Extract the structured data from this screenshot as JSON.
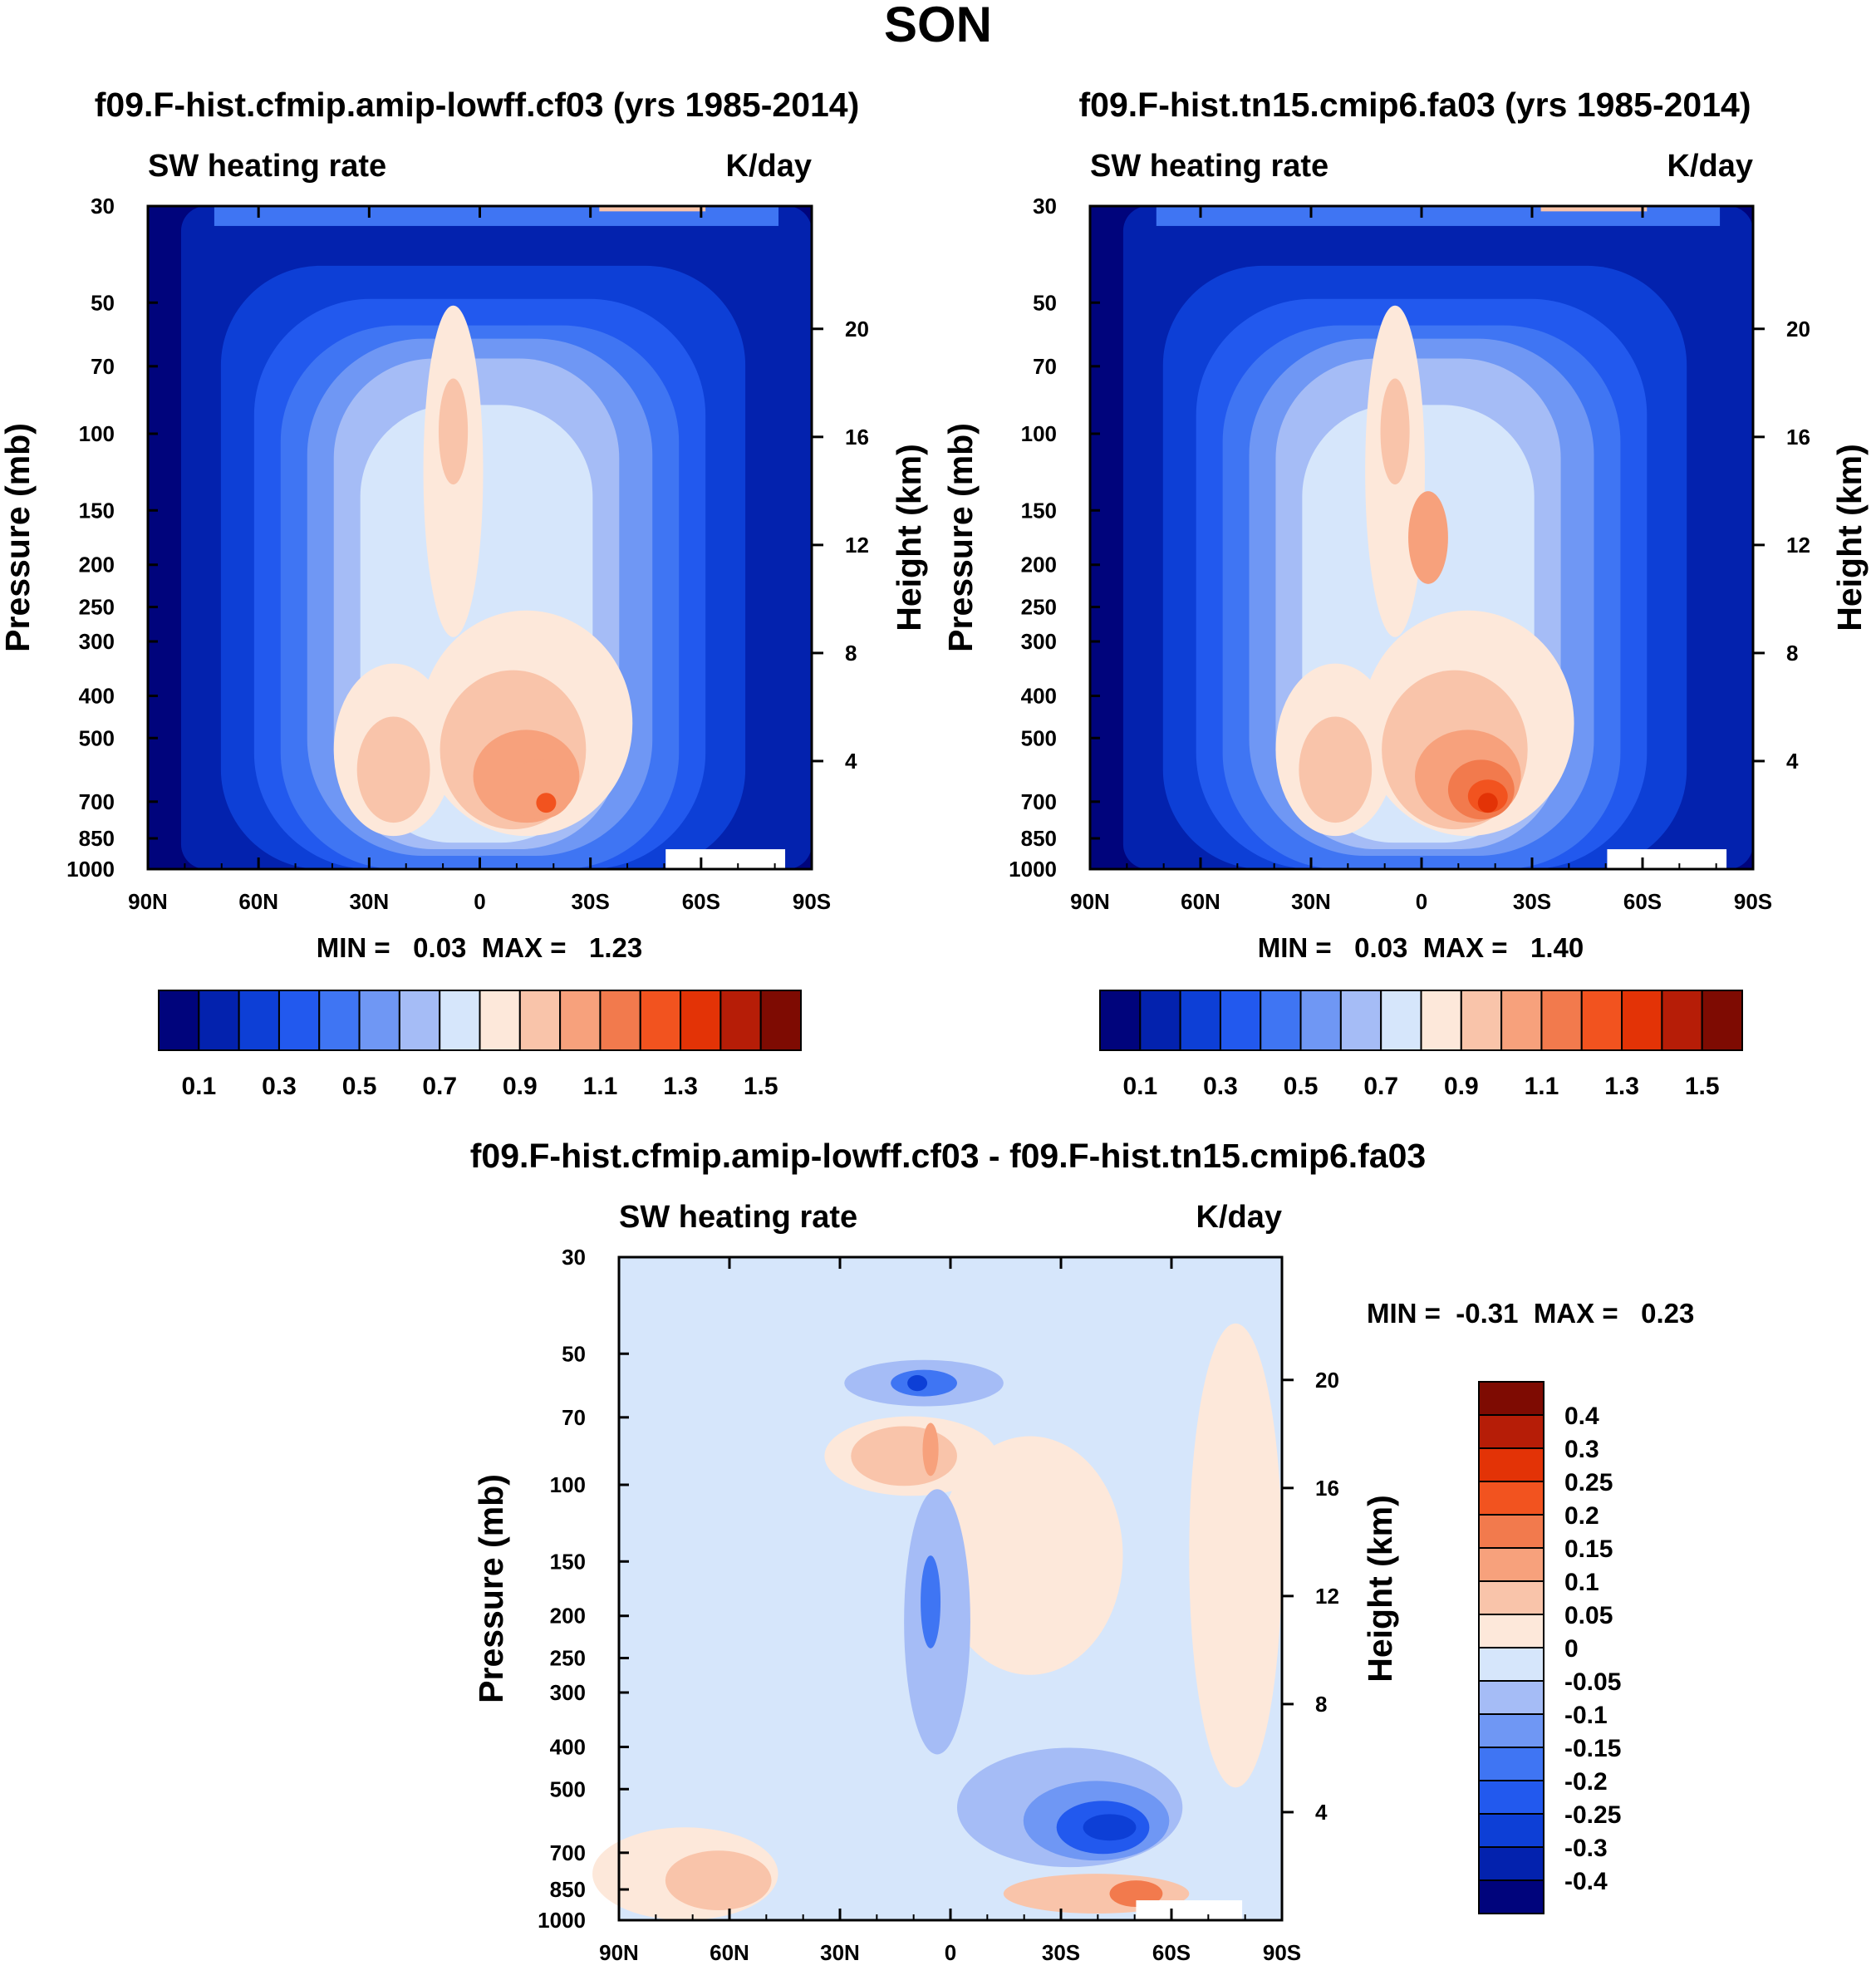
{
  "figure_title": "SON",
  "colors": {
    "cool": [
      "#00047c",
      "#0322ae",
      "#0d3fd6",
      "#2259ee",
      "#3f75f3",
      "#6f97f4",
      "#a5bcf6",
      "#d6e6fb"
    ],
    "warm": [
      "#fde8da",
      "#f9c4aa",
      "#f7a17c",
      "#f27a4d",
      "#f2531f",
      "#e33306",
      "#b61d07",
      "#7e0b02"
    ],
    "diff": [
      "#00047c",
      "#0322ae",
      "#0d3fd6",
      "#2259ee",
      "#3f75f3",
      "#6f97f4",
      "#a5bcf6",
      "#d6e6fb",
      "#fde8da",
      "#f9c4aa",
      "#f7a17c",
      "#f27a4d",
      "#f2531f",
      "#e33306",
      "#b61d07",
      "#7e0b02"
    ]
  },
  "chart_data": [
    {
      "type": "heatmap",
      "title": "f09.F-hist.cfmip.amip-lowff.cf03 (yrs 1985-2014)",
      "left_label": "SW heating rate",
      "right_label": "K/day",
      "ylabel": "Pressure (mb)",
      "ylabel_right": "Height (km)",
      "x_ticks": [
        "90N",
        "60N",
        "30N",
        "0",
        "30S",
        "60S",
        "90S"
      ],
      "y_ticks": [
        "30",
        "50",
        "70",
        "100",
        "150",
        "200",
        "250",
        "300",
        "400",
        "500",
        "700",
        "850",
        "1000"
      ],
      "height_ticks": [
        "20",
        "16",
        "12",
        "8",
        "4"
      ],
      "min": 0.03,
      "max": 1.23,
      "stats_text": "MIN =   0.03  MAX =   1.23",
      "colorbar_labels": [
        "0.1",
        "0.3",
        "0.5",
        "0.7",
        "0.9",
        "1.1",
        "1.3",
        "1.5"
      ]
    },
    {
      "type": "heatmap",
      "title": "f09.F-hist.tn15.cmip6.fa03 (yrs 1985-2014)",
      "left_label": "SW heating rate",
      "right_label": "K/day",
      "ylabel": "Pressure (mb)",
      "ylabel_right": "Height (km)",
      "x_ticks": [
        "90N",
        "60N",
        "30N",
        "0",
        "30S",
        "60S",
        "90S"
      ],
      "y_ticks": [
        "30",
        "50",
        "70",
        "100",
        "150",
        "200",
        "250",
        "300",
        "400",
        "500",
        "700",
        "850",
        "1000"
      ],
      "height_ticks": [
        "20",
        "16",
        "12",
        "8",
        "4"
      ],
      "min": 0.03,
      "max": 1.4,
      "stats_text": "MIN =   0.03  MAX =   1.40",
      "colorbar_labels": [
        "0.1",
        "0.3",
        "0.5",
        "0.7",
        "0.9",
        "1.1",
        "1.3",
        "1.5"
      ]
    },
    {
      "type": "heatmap",
      "title": "f09.F-hist.cfmip.amip-lowff.cf03 - f09.F-hist.tn15.cmip6.fa03",
      "left_label": "SW heating rate",
      "right_label": "K/day",
      "ylabel": "Pressure (mb)",
      "ylabel_right": "Height (km)",
      "x_ticks": [
        "90N",
        "60N",
        "30N",
        "0",
        "30S",
        "60S",
        "90S"
      ],
      "y_ticks": [
        "30",
        "50",
        "70",
        "100",
        "150",
        "200",
        "250",
        "300",
        "400",
        "500",
        "700",
        "850",
        "1000"
      ],
      "height_ticks": [
        "20",
        "16",
        "12",
        "8",
        "4"
      ],
      "min": -0.31,
      "max": 0.23,
      "stats_text": "MIN =  -0.31  MAX =   0.23",
      "colorbar_labels": [
        "0.4",
        "0.3",
        "0.25",
        "0.2",
        "0.15",
        "0.1",
        "0.05",
        "0",
        "-0.05",
        "-0.1",
        "-0.15",
        "-0.2",
        "-0.25",
        "-0.3",
        "-0.4"
      ]
    }
  ]
}
